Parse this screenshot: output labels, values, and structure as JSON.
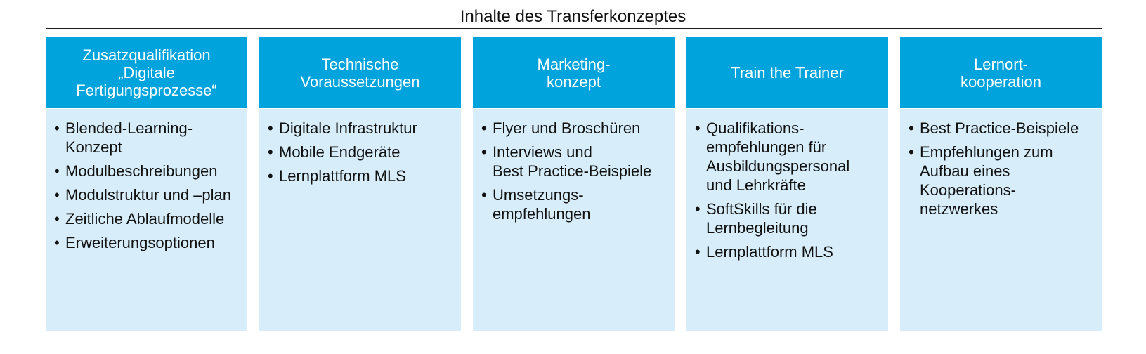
{
  "title": "Inhalte des Transferkonzeptes",
  "colors": {
    "header_bg": "#00A3DB",
    "body_bg": "#D7EEFA",
    "rule": "#1A1A1A"
  },
  "columns": [
    {
      "heading": "Zusatzqualifikation\n„Digitale\nFertigungsprozesse“",
      "items": [
        "Blended-Learning-\nKonzept",
        "Modulbeschreibungen",
        "Modulstruktur und –plan",
        "Zeitliche Ablaufmodelle",
        "Erweiterungsoptionen"
      ]
    },
    {
      "heading": "Technische\nVoraussetzungen",
      "items": [
        "Digitale Infrastruktur",
        "Mobile Endgeräte",
        "Lernplattform MLS"
      ]
    },
    {
      "heading": "Marketing-\nkonzept",
      "items": [
        "Flyer und Broschüren",
        "Interviews und\nBest Practice-Beispiele",
        "Umsetzungs-\nempfehlungen"
      ]
    },
    {
      "heading": "Train the Trainer",
      "items": [
        "Qualifikations-\nempfehlungen für\nAusbildungspersonal\nund Lehrkräfte",
        "SoftSkills für die\nLernbegleitung",
        "Lernplattform MLS"
      ]
    },
    {
      "heading": "Lernort-\nkooperation",
      "items": [
        "Best Practice-Beispiele",
        "Empfehlungen zum\nAufbau eines\nKooperations-\nnetzwerkes"
      ]
    }
  ]
}
